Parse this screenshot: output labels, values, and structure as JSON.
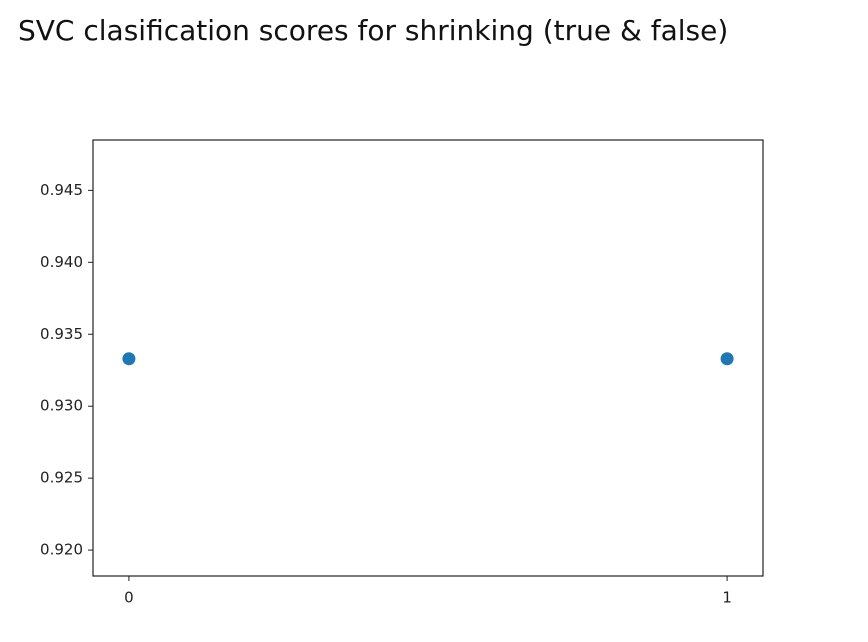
{
  "chart_data": {
    "type": "scatter",
    "title": "SVC clasification scores for shrinking (true & false)",
    "x": [
      0,
      1
    ],
    "values": [
      0.9333,
      0.9333
    ],
    "color": "#1f77b4",
    "xlim": [
      -0.06,
      1.06
    ],
    "xticks": [
      0,
      1
    ],
    "ylim": [
      0.9182,
      0.9485
    ],
    "yticks": [
      {
        "value": 0.92,
        "label": "0.920"
      },
      0.925,
      {
        "value": 0.93,
        "label": "0.930"
      },
      0.935,
      {
        "value": 0.94,
        "label": "0.940"
      },
      0.945
    ],
    "grid": false
  }
}
